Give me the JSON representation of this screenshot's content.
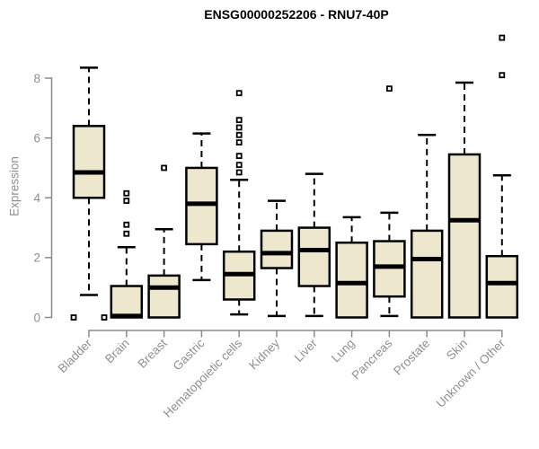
{
  "chart_data": {
    "type": "boxplot",
    "title": "ENSG00000252206 - RNU7-40P",
    "ylabel": "Expression",
    "xlabel": "",
    "yticks": [
      0,
      2,
      4,
      6,
      8
    ],
    "ylim": [
      -0.4,
      9.6
    ],
    "grid": false,
    "legend": "none",
    "colors": {
      "box_fill": "#EDE7CE",
      "box_border": "#000000",
      "median": "#000000",
      "whisker": "#000000",
      "axis": "#8a8a8a",
      "tick_label": "#8f8f8f",
      "title": "#000000",
      "background": "#ffffff"
    },
    "categories": [
      "Bladder",
      "Brain",
      "Breast",
      "Gastric",
      "Hematopoietic cells",
      "Kidney",
      "Liver",
      "Lung",
      "Pancreas",
      "Prostate",
      "Skin",
      "Unknown / Other"
    ],
    "boxes": [
      {
        "name": "Bladder",
        "low": 0.75,
        "q1": 4.0,
        "median": 4.85,
        "q3": 6.4,
        "high": 8.35,
        "outliers": [
          0.0,
          0.0
        ],
        "outliers_dx": [
          -17,
          17
        ]
      },
      {
        "name": "Brain",
        "low": 0.0,
        "q1": 0.0,
        "median": 0.05,
        "q3": 1.05,
        "high": 2.35,
        "outliers": [
          4.15,
          3.9,
          3.1,
          2.8
        ]
      },
      {
        "name": "Breast",
        "low": 0.0,
        "q1": 0.0,
        "median": 1.0,
        "q3": 1.4,
        "high": 2.95,
        "outliers": [
          5.0
        ]
      },
      {
        "name": "Gastric",
        "low": 1.25,
        "q1": 2.45,
        "median": 3.8,
        "q3": 5.0,
        "high": 6.15,
        "outliers": []
      },
      {
        "name": "Hematopoietic cells",
        "low": 0.1,
        "q1": 0.6,
        "median": 1.45,
        "q3": 2.2,
        "high": 4.6,
        "outliers": [
          7.5,
          6.6,
          6.35,
          6.1,
          5.85,
          5.4,
          5.1,
          4.85
        ]
      },
      {
        "name": "Kidney",
        "low": 0.05,
        "q1": 1.65,
        "median": 2.15,
        "q3": 2.9,
        "high": 3.9,
        "outliers": []
      },
      {
        "name": "Liver",
        "low": 0.05,
        "q1": 1.05,
        "median": 2.25,
        "q3": 3.0,
        "high": 4.8,
        "outliers": []
      },
      {
        "name": "Lung",
        "low": 0.0,
        "q1": 0.0,
        "median": 1.15,
        "q3": 2.5,
        "high": 3.35,
        "outliers": []
      },
      {
        "name": "Pancreas",
        "low": 0.05,
        "q1": 0.7,
        "median": 1.7,
        "q3": 2.55,
        "high": 3.5,
        "outliers": [
          7.65
        ]
      },
      {
        "name": "Prostate",
        "low": 0.0,
        "q1": 0.0,
        "median": 1.95,
        "q3": 2.9,
        "high": 6.1,
        "outliers": []
      },
      {
        "name": "Skin",
        "low": 0.0,
        "q1": 0.0,
        "median": 3.25,
        "q3": 5.45,
        "high": 7.85,
        "outliers": []
      },
      {
        "name": "Unknown / Other",
        "low": 0.0,
        "q1": 0.0,
        "median": 1.15,
        "q3": 2.05,
        "high": 4.75,
        "outliers": [
          9.35,
          8.1
        ]
      }
    ]
  }
}
